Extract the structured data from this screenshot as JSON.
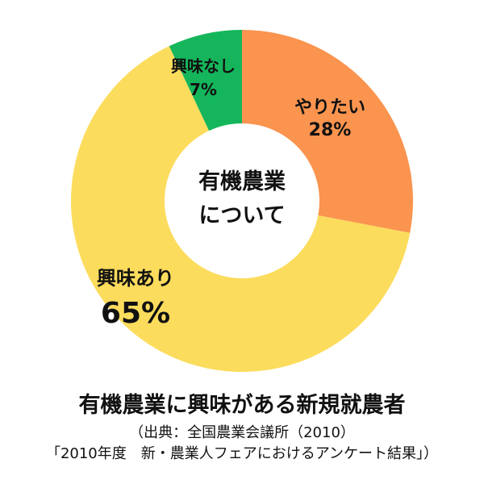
{
  "chart_data": {
    "type": "pie",
    "donut": true,
    "center_label": [
      "有機農業",
      "について"
    ],
    "slices": [
      {
        "label": "やりたい",
        "value": 28,
        "display": "28%",
        "color": "#FA944F"
      },
      {
        "label": "興味あり",
        "value": 65,
        "display": "65%",
        "color": "#FCDC5D"
      },
      {
        "label": "興味なし",
        "value": 7,
        "display": "7%",
        "color": "#15B65B"
      }
    ],
    "title": "有機農業に興味がある新規就農者",
    "source_line1": "（出典：全国農業会議所（2010）",
    "source_line2": "「2010年度　新・農業人フェアにおけるアンケート結果」）"
  }
}
